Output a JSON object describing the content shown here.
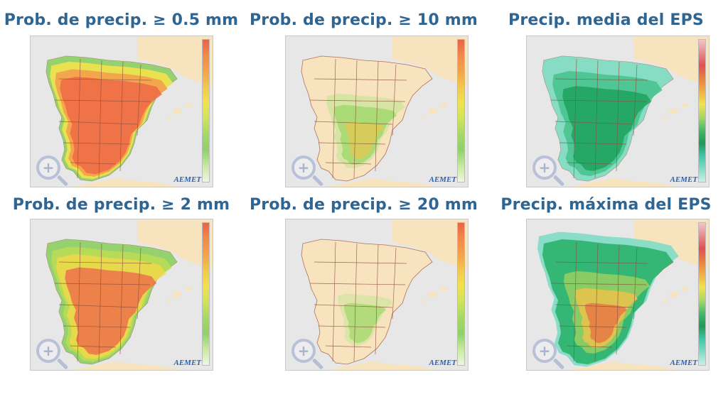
{
  "panels": [
    {
      "title": "Prob. de precip.  ≥ 0.5 mm",
      "fill": "prob_high",
      "scale": "prob",
      "logo": "AEMET"
    },
    {
      "title": "Prob. de precip.  ≥ 10 mm",
      "fill": "prob_low",
      "scale": "prob",
      "logo": "AEMET"
    },
    {
      "title": "Precip. media del EPS",
      "fill": "mean",
      "scale": "amount",
      "logo": "AEMET"
    },
    {
      "title": "Prob. de precip.  ≥ 2 mm",
      "fill": "prob_mid",
      "scale": "prob",
      "logo": "AEMET"
    },
    {
      "title": "Prob. de precip.  ≥ 20 mm",
      "fill": "prob_lowest",
      "scale": "prob",
      "logo": "AEMET"
    },
    {
      "title": "Precip. máxima del EPS",
      "fill": "max",
      "scale": "amount",
      "logo": "AEMET"
    }
  ],
  "colors": {
    "title": "#2f6592",
    "land": "#f7e3bd",
    "sea": "#e7e7e7",
    "border": "#8a4a3a"
  }
}
